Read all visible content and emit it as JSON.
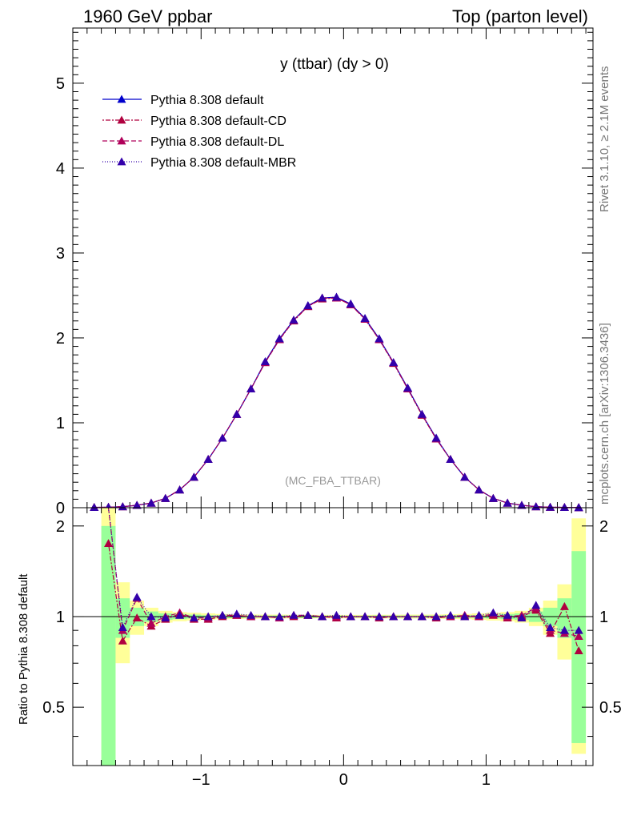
{
  "header": {
    "left": "1960 GeV ppbar",
    "right": "Top (parton level)"
  },
  "side_text": {
    "rivet": "Rivet 3.1.10, ≥ 2.1M events",
    "mcplots": "mcplots.cern.ch [arXiv:1306.3436]"
  },
  "chart_data": [
    {
      "type": "line",
      "title": "y (ttbar) (dy > 0)",
      "watermark": "(MC_FBA_TTBAR)",
      "xlim": [
        -1.9,
        1.75
      ],
      "ylim": [
        0,
        5.65
      ],
      "yticks": [
        {
          "v": 1,
          "label": "1"
        },
        {
          "v": 2,
          "label": "2"
        },
        {
          "v": 3,
          "label": "3"
        },
        {
          "v": 4,
          "label": "4"
        },
        {
          "v": 5,
          "label": "5"
        }
      ],
      "x": [
        -1.75,
        -1.65,
        -1.55,
        -1.45,
        -1.35,
        -1.25,
        -1.15,
        -1.05,
        -0.95,
        -0.85,
        -0.75,
        -0.65,
        -0.55,
        -0.45,
        -0.35,
        -0.25,
        -0.15,
        -0.05,
        0.05,
        0.15,
        0.25,
        0.35,
        0.45,
        0.55,
        0.65,
        0.75,
        0.85,
        0.95,
        1.05,
        1.15,
        1.25,
        1.35,
        1.45,
        1.55,
        1.65
      ],
      "series": [
        {
          "name": "Pythia 8.308 default",
          "color": "#0000cc",
          "dash": "",
          "values": [
            0.004,
            0.006,
            0.012,
            0.028,
            0.055,
            0.11,
            0.21,
            0.36,
            0.57,
            0.82,
            1.1,
            1.4,
            1.72,
            1.99,
            2.21,
            2.38,
            2.47,
            2.48,
            2.4,
            2.23,
            1.99,
            1.71,
            1.41,
            1.1,
            0.82,
            0.57,
            0.36,
            0.21,
            0.11,
            0.055,
            0.028,
            0.012,
            0.006,
            0.004,
            0.002
          ]
        },
        {
          "name": "Pythia 8.308 default-CD",
          "color": "#b0003f",
          "dash": "2,2,6,2",
          "values": [
            0.004,
            0.006,
            0.012,
            0.028,
            0.055,
            0.11,
            0.21,
            0.36,
            0.57,
            0.82,
            1.1,
            1.4,
            1.71,
            1.98,
            2.2,
            2.37,
            2.46,
            2.47,
            2.39,
            2.22,
            1.98,
            1.7,
            1.4,
            1.09,
            0.81,
            0.57,
            0.36,
            0.21,
            0.11,
            0.055,
            0.028,
            0.012,
            0.006,
            0.004,
            0.002
          ]
        },
        {
          "name": "Pythia 8.308 default-DL",
          "color": "#b0005a",
          "dash": "6,3",
          "values": [
            0.004,
            0.006,
            0.012,
            0.028,
            0.055,
            0.11,
            0.21,
            0.36,
            0.57,
            0.82,
            1.1,
            1.4,
            1.71,
            1.98,
            2.21,
            2.37,
            2.47,
            2.47,
            2.39,
            2.22,
            1.98,
            1.71,
            1.4,
            1.1,
            0.81,
            0.57,
            0.36,
            0.21,
            0.11,
            0.055,
            0.028,
            0.012,
            0.006,
            0.004,
            0.002
          ]
        },
        {
          "name": "Pythia 8.308 default-MBR",
          "color": "#3300aa",
          "dash": "1,2",
          "values": [
            0.004,
            0.006,
            0.012,
            0.028,
            0.055,
            0.11,
            0.21,
            0.36,
            0.57,
            0.82,
            1.1,
            1.4,
            1.72,
            1.99,
            2.21,
            2.38,
            2.47,
            2.48,
            2.4,
            2.23,
            1.99,
            1.71,
            1.41,
            1.1,
            0.82,
            0.57,
            0.36,
            0.21,
            0.11,
            0.055,
            0.028,
            0.012,
            0.006,
            0.004,
            0.002
          ]
        }
      ]
    },
    {
      "type": "line",
      "ylabel": "Ratio to Pythia 8.308 default",
      "xlim": [
        -1.9,
        1.75
      ],
      "ylim": [
        0.32,
        2.3
      ],
      "xticks": [
        {
          "v": -1,
          "label": "−1"
        },
        {
          "v": 0,
          "label": "0"
        },
        {
          "v": 1,
          "label": "1"
        }
      ],
      "yticks": [
        {
          "v": 0.5,
          "label": "0.5"
        },
        {
          "v": 1,
          "label": "1"
        },
        {
          "v": 2,
          "label": "2"
        }
      ],
      "band_x": [
        -1.65,
        -1.55,
        -1.45,
        -1.35,
        -1.25,
        -1.15,
        -1.05,
        -0.95,
        -0.85,
        -0.75,
        -0.65,
        -0.55,
        -0.45,
        -0.35,
        -0.25,
        -0.15,
        -0.05,
        0.05,
        0.15,
        0.25,
        0.35,
        0.45,
        0.55,
        0.65,
        0.75,
        0.85,
        0.95,
        1.05,
        1.15,
        1.25,
        1.35,
        1.45,
        1.55,
        1.65
      ],
      "green_band": [
        [
          0.32,
          2.0
        ],
        [
          0.85,
          1.15
        ],
        [
          0.93,
          1.07
        ],
        [
          0.96,
          1.04
        ],
        [
          0.975,
          1.025
        ],
        [
          0.98,
          1.02
        ],
        [
          0.985,
          1.015
        ],
        [
          0.99,
          1.01
        ],
        [
          0.99,
          1.01
        ],
        [
          0.99,
          1.01
        ],
        [
          0.992,
          1.008
        ],
        [
          0.992,
          1.008
        ],
        [
          0.992,
          1.008
        ],
        [
          0.992,
          1.008
        ],
        [
          0.992,
          1.008
        ],
        [
          0.993,
          1.007
        ],
        [
          0.993,
          1.007
        ],
        [
          0.993,
          1.007
        ],
        [
          0.993,
          1.007
        ],
        [
          0.992,
          1.008
        ],
        [
          0.992,
          1.008
        ],
        [
          0.992,
          1.008
        ],
        [
          0.992,
          1.008
        ],
        [
          0.992,
          1.008
        ],
        [
          0.99,
          1.01
        ],
        [
          0.99,
          1.01
        ],
        [
          0.99,
          1.01
        ],
        [
          0.985,
          1.015
        ],
        [
          0.98,
          1.02
        ],
        [
          0.975,
          1.025
        ],
        [
          0.96,
          1.04
        ],
        [
          0.93,
          1.07
        ],
        [
          0.85,
          1.15
        ],
        [
          0.38,
          1.65
        ]
      ],
      "yellow_band": [
        [
          0.32,
          2.3
        ],
        [
          0.7,
          1.3
        ],
        [
          0.87,
          1.13
        ],
        [
          0.93,
          1.07
        ],
        [
          0.955,
          1.045
        ],
        [
          0.965,
          1.035
        ],
        [
          0.97,
          1.03
        ],
        [
          0.975,
          1.025
        ],
        [
          0.98,
          1.02
        ],
        [
          0.982,
          1.018
        ],
        [
          0.984,
          1.016
        ],
        [
          0.985,
          1.015
        ],
        [
          0.985,
          1.015
        ],
        [
          0.986,
          1.014
        ],
        [
          0.986,
          1.014
        ],
        [
          0.987,
          1.013
        ],
        [
          0.987,
          1.013
        ],
        [
          0.987,
          1.013
        ],
        [
          0.987,
          1.013
        ],
        [
          0.986,
          1.014
        ],
        [
          0.986,
          1.014
        ],
        [
          0.985,
          1.015
        ],
        [
          0.985,
          1.015
        ],
        [
          0.984,
          1.016
        ],
        [
          0.982,
          1.018
        ],
        [
          0.98,
          1.02
        ],
        [
          0.975,
          1.025
        ],
        [
          0.97,
          1.03
        ],
        [
          0.965,
          1.035
        ],
        [
          0.955,
          1.045
        ],
        [
          0.93,
          1.07
        ],
        [
          0.87,
          1.13
        ],
        [
          0.72,
          1.28
        ],
        [
          0.35,
          2.12
        ]
      ],
      "series": [
        {
          "name": "Pythia 8.308 default-CD",
          "color": "#b0003f",
          "dash": "2,2,6,2",
          "x": [
            -1.65,
            -1.55,
            -1.45,
            -1.35,
            -1.25,
            -1.15,
            -1.05,
            -0.95,
            -0.85,
            -0.75,
            -0.65,
            -0.55,
            -0.45,
            -0.35,
            -0.25,
            -0.15,
            -0.05,
            0.05,
            0.15,
            0.25,
            0.35,
            0.45,
            0.55,
            0.65,
            0.75,
            0.85,
            0.95,
            1.05,
            1.15,
            1.25,
            1.35,
            1.45,
            1.55,
            1.65
          ],
          "values": [
            1.75,
            0.83,
            0.99,
            0.93,
            0.98,
            1.02,
            0.98,
            0.98,
            1.0,
            1.01,
            1.0,
            1.0,
            0.99,
            1.0,
            1.01,
            1.0,
            0.99,
            1.0,
            1.0,
            0.99,
            1.0,
            1.0,
            1.0,
            0.99,
            1.0,
            1.0,
            1.0,
            1.01,
            0.99,
            1.0,
            1.05,
            0.88,
            1.08,
            0.77
          ]
        },
        {
          "name": "Pythia 8.308 default-DL",
          "color": "#b0005a",
          "dash": "6,3",
          "x": [
            -1.65,
            -1.55,
            -1.45,
            -1.35,
            -1.25,
            -1.15,
            -1.05,
            -0.95,
            -0.85,
            -0.75,
            -0.65,
            -0.55,
            -0.45,
            -0.35,
            -0.25,
            -0.15,
            -0.05,
            0.05,
            0.15,
            0.25,
            0.35,
            0.45,
            0.55,
            0.65,
            0.75,
            0.85,
            0.95,
            1.05,
            1.15,
            1.25,
            1.35,
            1.45,
            1.55,
            1.65
          ],
          "values": [
            2.4,
            0.9,
            1.15,
            0.95,
            1.0,
            1.03,
            0.99,
            0.99,
            1.01,
            1.01,
            1.0,
            1.0,
            0.99,
            1.01,
            1.01,
            1.0,
            1.0,
            1.0,
            1.0,
            1.0,
            1.0,
            1.0,
            1.0,
            1.0,
            1.0,
            1.01,
            1.0,
            1.02,
            1.0,
            1.01,
            1.07,
            0.9,
            0.88,
            0.86
          ]
        },
        {
          "name": "Pythia 8.308 default-MBR",
          "color": "#3300aa",
          "dash": "1,2",
          "x": [
            -1.65,
            -1.55,
            -1.45,
            -1.35,
            -1.25,
            -1.15,
            -1.05,
            -0.95,
            -0.85,
            -0.75,
            -0.65,
            -0.55,
            -0.45,
            -0.35,
            -0.25,
            -0.15,
            -0.05,
            0.05,
            0.15,
            0.25,
            0.35,
            0.45,
            0.55,
            0.65,
            0.75,
            0.85,
            0.95,
            1.05,
            1.15,
            1.25,
            1.35,
            1.45,
            1.55,
            1.65
          ],
          "values": [
            2.4,
            0.92,
            1.16,
            1.0,
            0.99,
            1.01,
            0.99,
            1.0,
            1.01,
            1.02,
            1.01,
            1.0,
            1.0,
            1.01,
            1.01,
            1.0,
            1.01,
            1.0,
            1.0,
            1.0,
            1.0,
            1.0,
            1.0,
            1.0,
            1.01,
            1.0,
            1.01,
            1.03,
            1.01,
            0.99,
            1.09,
            0.92,
            0.9,
            0.9
          ]
        }
      ]
    }
  ]
}
